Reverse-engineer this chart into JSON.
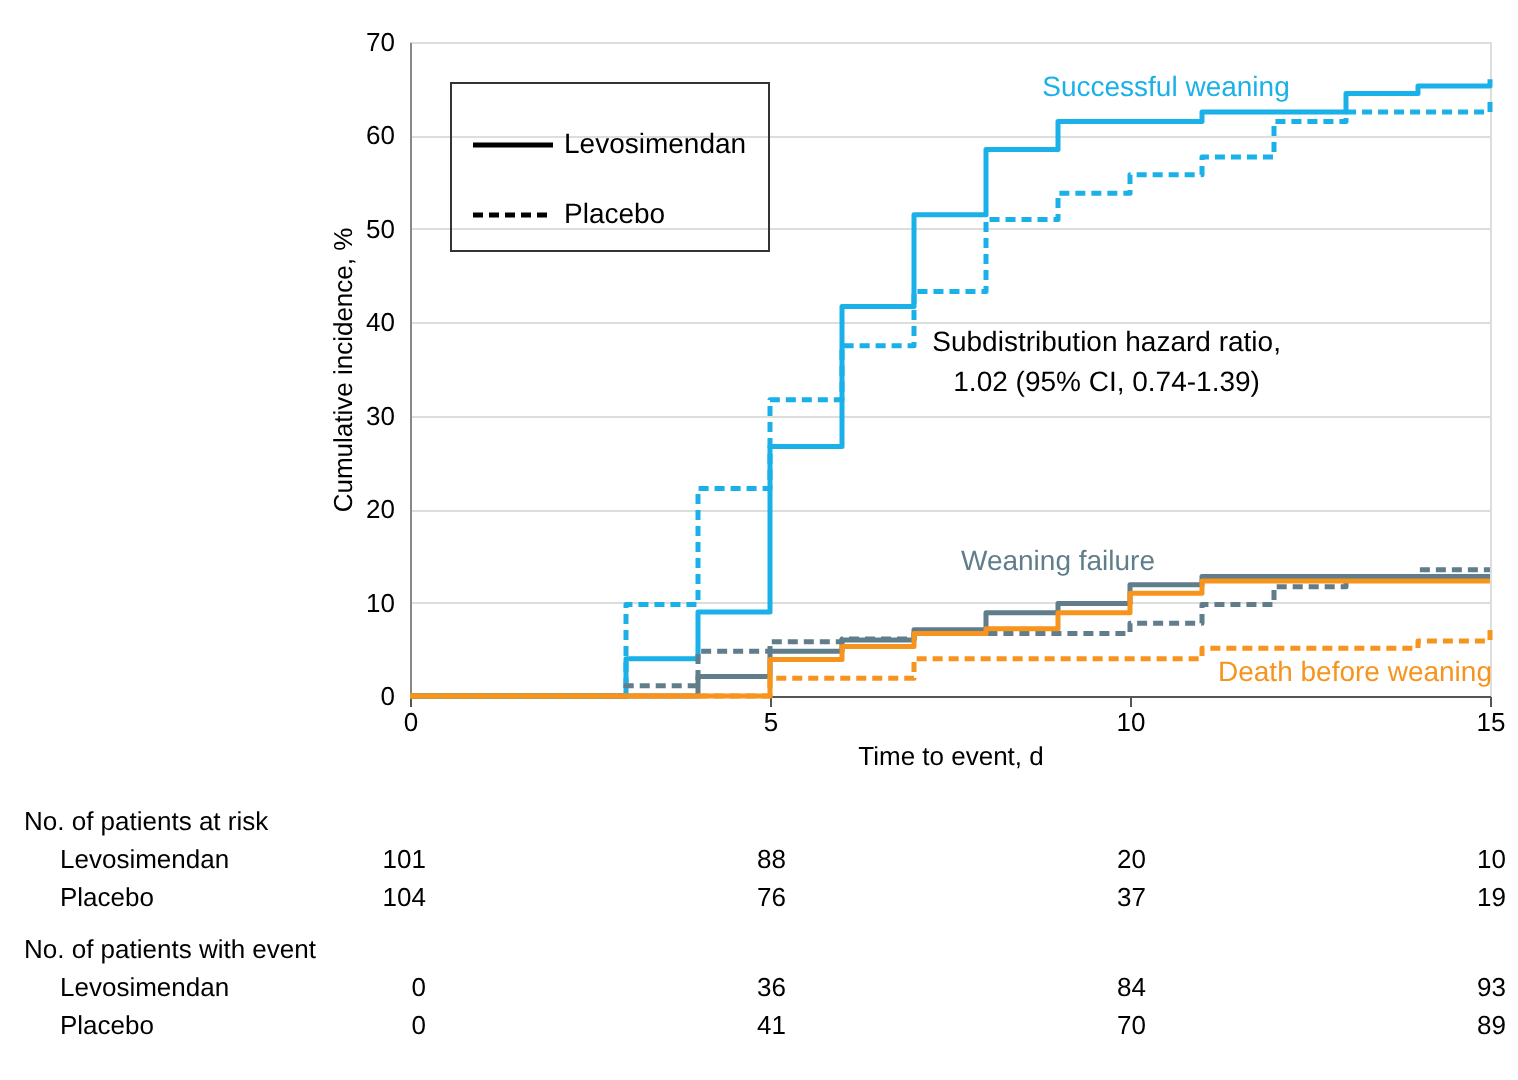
{
  "chart_data": {
    "type": "step",
    "xlabel": "Time to event, d",
    "ylabel": "Cumulative incidence, %",
    "xlim": [
      0,
      15
    ],
    "xticks": [
      0,
      5,
      10,
      15
    ],
    "ylim": [
      0,
      70
    ],
    "yticks": [
      0,
      10,
      20,
      30,
      40,
      50,
      60,
      70
    ],
    "grid": "y",
    "series": [
      {
        "line_style": "solid",
        "color": "#1ab0e8",
        "x": [
          0,
          3,
          4,
          5,
          6,
          7,
          8,
          9,
          11,
          13,
          14,
          15
        ],
        "values": [
          0,
          4,
          9,
          26.7,
          41.7,
          51.5,
          58.5,
          61.5,
          62.5,
          64.5,
          65.3,
          66
        ]
      },
      {
        "line_style": "dashed",
        "color": "#1ab0e8",
        "x": [
          0,
          3,
          4,
          5,
          6,
          7,
          8,
          9,
          10,
          11,
          12,
          13,
          15
        ],
        "values": [
          0,
          9.8,
          22.2,
          31.7,
          37.5,
          43.3,
          51,
          53.8,
          55.8,
          57.7,
          61.5,
          62.5,
          63.8
        ]
      },
      {
        "line_style": "solid",
        "color": "#5f7d8a",
        "x": [
          0,
          4,
          5,
          6,
          7,
          8,
          9,
          10,
          11,
          15
        ],
        "values": [
          0,
          2.1,
          4.8,
          6,
          7.1,
          8.9,
          9.9,
          11.9,
          12.8,
          12.8
        ]
      },
      {
        "line_style": "dashed",
        "color": "#5f7d8a",
        "x": [
          0,
          3,
          4,
          5,
          6,
          7,
          10,
          11,
          12,
          13,
          14,
          15
        ],
        "values": [
          0,
          1.1,
          4.8,
          5.8,
          6.1,
          6.7,
          7.8,
          9.8,
          11.7,
          12.4,
          13.5,
          13.5
        ]
      },
      {
        "line_style": "solid",
        "color": "#f7941d",
        "x": [
          0,
          5,
          6,
          7,
          8,
          9,
          10,
          11,
          15
        ],
        "values": [
          0,
          3.9,
          5.3,
          6.7,
          7.2,
          8.9,
          11,
          12.3,
          12.3
        ]
      },
      {
        "line_style": "dashed",
        "color": "#f7941d",
        "x": [
          0,
          5,
          7,
          11,
          14,
          15
        ],
        "values": [
          0,
          1.9,
          4,
          5.1,
          5.9,
          7.4
        ]
      }
    ],
    "annotations": [
      "Levosimendan",
      "Placebo",
      "Successful weaning",
      "Weaning failure",
      "Death before weaning",
      "Subdistribution hazard ratio,\n1.02 (95% CI, 0.74-1.39)",
      "No. of patients at risk",
      "Levosimendan",
      "101",
      "88",
      "20",
      "10",
      "Placebo",
      "104",
      "76",
      "37",
      "19",
      "No. of patients with event",
      "Levosimendan",
      "0",
      "36",
      "84",
      "93",
      "Placebo",
      "0",
      "41",
      "70",
      "89"
    ]
  }
}
